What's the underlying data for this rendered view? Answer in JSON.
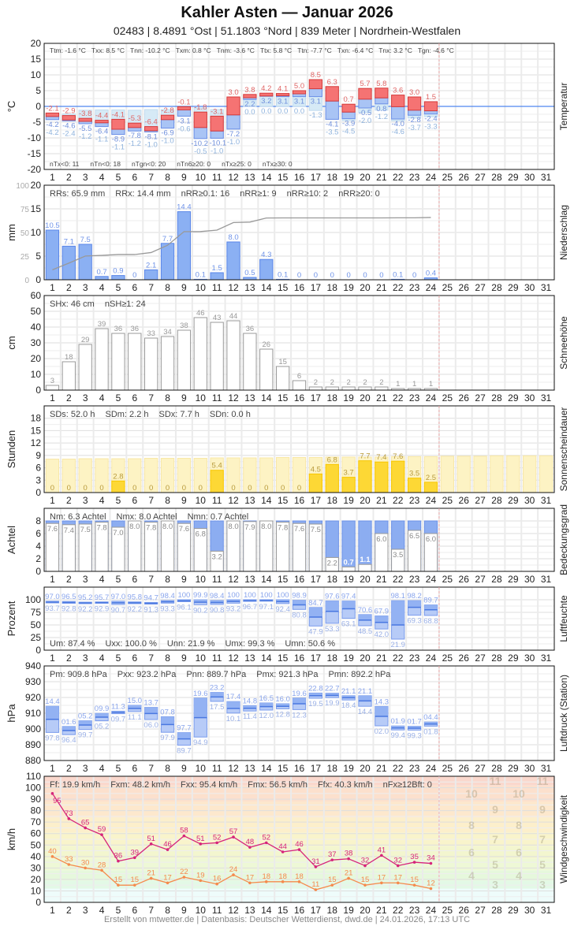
{
  "header": {
    "title": "Kahler Asten  —  Januar 2026",
    "subtitle": "02483  |  8.4891 °Ost  |  51.1803 °Nord  |  839 Meter  |  Nordrhein-Westfalen"
  },
  "footer": "Erstellt von mtwetter.de | Datenbasis: Deutscher Wetterdienst, dwd.de | 24.01.2026, 17:13 UTC",
  "days": [
    "1",
    "2",
    "3",
    "4",
    "5",
    "6",
    "7",
    "8",
    "9",
    "10",
    "11",
    "12",
    "13",
    "14",
    "15",
    "16",
    "17",
    "18",
    "19",
    "20",
    "21",
    "22",
    "23",
    "24",
    "25",
    "26",
    "27",
    "28",
    "29",
    "30",
    "31"
  ],
  "colors": {
    "temp_max": "#f57373",
    "temp_min": "#a9c4f5",
    "precip": "#8bb0f3",
    "snow": "#ffffff",
    "sun": "#fdd835",
    "cloud": "#8cadf1",
    "gust": "#d6247a",
    "wind": "#f58a4c",
    "today_line": "#f4b0b0"
  },
  "chart_data": [
    {
      "type": "bar",
      "ylabel": "°C",
      "side_label": "Temperatur",
      "ylim": [
        -20,
        20
      ],
      "yticks": [
        -20,
        -15,
        -10,
        -5,
        0,
        5,
        10,
        15,
        20
      ],
      "stats": [
        "Ttm: -1.6 °C",
        "Txx: 8.5 °C",
        "Tnn: -10.2 °C",
        "Txm: 0.8 °C",
        "Tnm: -3.6 °C",
        "Ttx: 5.8 °C",
        "Ttn: -7.7 °C",
        "Txn: -6.4 °C",
        "Tnx: 3.2 °C",
        "Tgn: -4.6 °C"
      ],
      "bottom_stats": [
        "nTx<0: 11",
        "nTn<0: 18",
        "nTgn<0: 20",
        "nTn6≥20: 0",
        "nTx≥25: 0",
        "nTx≥30: 0"
      ],
      "tx": [
        -2.1,
        -2.9,
        -3.8,
        -4.4,
        -4.1,
        -5.3,
        -6.4,
        -2.8,
        -0.1,
        -1.8,
        -3.1,
        3.0,
        3.8,
        4.2,
        4.1,
        5.0,
        8.5,
        6.3,
        0.7,
        5.7,
        5.8,
        3.6,
        3.0,
        1.5
      ],
      "tm": [
        -3.2,
        -4.3,
        -4.75,
        -5.2,
        -7.25,
        -6.7,
        -7.7,
        -4.2,
        -1.1,
        -6.7,
        -7.8,
        -2.7,
        2.75,
        3.3,
        3.4,
        4.0,
        5.6,
        1.7,
        -1.8,
        2.3,
        2.7,
        -0.1,
        -1.2,
        -1.4
      ],
      "tn": [
        -4.2,
        -4.6,
        -5.5,
        -6.4,
        -8.9,
        -7.8,
        -8.1,
        -6.9,
        -3.1,
        -10.2,
        -10.1,
        -7.2,
        2.2,
        3.2,
        3.1,
        3.1,
        3.1,
        -4.1,
        -3.9,
        -0.5,
        0.8,
        -4.0,
        -2.8,
        -2.4
      ],
      "tg": [
        -4.2,
        -2.4,
        -1.2,
        -1.1,
        -1.1,
        -1.2,
        -1.0,
        -1.0,
        -0.6,
        -0.5,
        -1.0,
        -1.0,
        0.0,
        0.0,
        0.0,
        0.0,
        -1.3,
        -3.5,
        -4.5,
        -2.0,
        -1.2,
        -4.6,
        -3.7,
        -3.3
      ]
    },
    {
      "type": "bar",
      "ylabel": "mm",
      "side_label": "Niederschlag",
      "ylim": [
        0,
        20
      ],
      "yticks": [
        0,
        5,
        10,
        15,
        20
      ],
      "y2lim": [
        0,
        100
      ],
      "y2ticks": [
        0,
        25,
        50,
        75,
        100
      ],
      "stats": [
        "RRs: 65.9 mm",
        "RRx: 14.4 mm",
        "nRR≥0.1: 16",
        "nRR≥1: 9",
        "nRR≥10: 2",
        "nRR≥20: 0"
      ],
      "values": [
        10.5,
        7.1,
        7.5,
        0.7,
        0.9,
        0,
        2.1,
        7.7,
        14.4,
        0.1,
        1.5,
        8.0,
        0.5,
        4.3,
        0.1,
        0,
        0,
        0,
        0,
        0,
        0,
        0.1,
        0,
        0.4
      ]
    },
    {
      "type": "bar",
      "ylabel": "cm",
      "side_label": "Schneehöhe",
      "ylim": [
        0,
        60
      ],
      "yticks": [
        0,
        10,
        20,
        30,
        40,
        50,
        60
      ],
      "stats": [
        "SHx: 46 cm",
        "nSH≥1: 24"
      ],
      "values": [
        3,
        18,
        29,
        39,
        36,
        36,
        33,
        34,
        38,
        46,
        43,
        44,
        36,
        26,
        15,
        6,
        2,
        2,
        2,
        2,
        2,
        1,
        1,
        1
      ]
    },
    {
      "type": "bar",
      "ylabel": "Stunden",
      "side_label": "Sonnenscheindauer",
      "ylim": [
        0,
        21
      ],
      "yticks": [
        0,
        3,
        6,
        9,
        12,
        15,
        18
      ],
      "stats": [
        "SDs: 52.0 h",
        "SDm: 2.2 h",
        "SDx: 7.7 h",
        "SDn: 0.0 h"
      ],
      "values": [
        0,
        0,
        0,
        0,
        2.8,
        0,
        0,
        0,
        0,
        0,
        5.4,
        0,
        0,
        0,
        0,
        0,
        4.5,
        6.8,
        3.7,
        7.7,
        7.4,
        7.6,
        3.5,
        2.5
      ],
      "possible": [
        8.1,
        8.1,
        8.2,
        8.2,
        8.2,
        8.2,
        8.3,
        8.3,
        8.3,
        8.3,
        8.4,
        8.4,
        8.4,
        8.4,
        8.5,
        8.5,
        8.5,
        8.6,
        8.6,
        8.6,
        8.6,
        8.7,
        8.7,
        8.7,
        8.8,
        8.8,
        8.8,
        8.9,
        8.9,
        8.9,
        8.9
      ]
    },
    {
      "type": "bar",
      "ylabel": "Achtel",
      "side_label": "Bedeckungsgrad",
      "ylim": [
        0,
        10
      ],
      "yticks": [
        0,
        2,
        4,
        6,
        8
      ],
      "stats": [
        "Nm: 6.3 Achtel",
        "Nmx: 8.0 Achtel",
        "Nmn: 0.7 Achtel"
      ],
      "values": [
        7.6,
        7.4,
        7.5,
        7.8,
        7.0,
        8.0,
        7.8,
        8.0,
        7.6,
        6.8,
        3.2,
        8.0,
        7.9,
        8.0,
        7.8,
        7.6,
        7.5,
        2.2,
        0.7,
        1.1,
        6.0,
        3.5,
        6.5,
        6.0
      ]
    },
    {
      "type": "bar",
      "ylabel": "Prozent",
      "side_label": "Luftfeuchte",
      "ylim": [
        0,
        125
      ],
      "yticks": [
        0,
        25,
        50,
        75,
        100
      ],
      "stats": [
        "Um: 87.4 %",
        "Uxx: 100.0 %",
        "Unn: 21.9 %",
        "Umx: 99.3 %",
        "Umn: 50.6 %"
      ],
      "max": [
        97.0,
        96.5,
        95.2,
        95.7,
        97.0,
        95.8,
        94.7,
        98.4,
        100,
        99.9,
        98.4,
        100,
        100,
        100,
        100,
        98.9,
        84.7,
        97.6,
        97.4,
        70.6,
        67.9,
        98.1,
        98.2,
        89.7
      ],
      "mean": [
        95.4,
        94.7,
        93.7,
        94.3,
        93.9,
        94.0,
        93.0,
        95.9,
        98.1,
        95.1,
        94.6,
        96.6,
        98.4,
        98.6,
        96.2,
        89.9,
        65.6,
        77.0,
        82.0,
        59.5,
        55.0,
        50.0,
        85.0,
        80.0
      ],
      "min": [
        93.7,
        92.8,
        92.2,
        92.9,
        90.7,
        92.2,
        91.3,
        93.3,
        96.1,
        90.2,
        90.8,
        93.2,
        96.7,
        97.1,
        92.4,
        80.8,
        47.9,
        53.3,
        63.1,
        48.5,
        42.0,
        21.9,
        69.3,
        68.8
      ]
    },
    {
      "type": "bar",
      "ylabel": "hPa",
      "side_label": "Luftdruck (Station)",
      "ylim": [
        880,
        940
      ],
      "yticks": [
        880,
        890,
        900,
        910,
        920,
        930,
        940
      ],
      "stats": [
        "Pm: 909.8 hPa",
        "Pxx: 923.2 hPa",
        "Pnn: 889.7 hPa",
        "Pmx: 921.3 hPa",
        "Pmn: 892.2 hPa"
      ],
      "max": [
        914.4,
        901.6,
        905.2,
        909.9,
        911.3,
        915.0,
        913.7,
        907.8,
        897.7,
        919.6,
        923.2,
        917.4,
        914.8,
        916.5,
        916.0,
        919.6,
        922.8,
        922.7,
        921.1,
        921.1,
        914.3,
        901.9,
        901.7,
        904.4
      ],
      "mean": [
        906.1,
        899.0,
        902.5,
        907.5,
        910.5,
        913.0,
        909.8,
        902.8,
        893.7,
        907.2,
        920.3,
        913.0,
        913.1,
        914.2,
        914.4,
        916.0,
        921.1,
        921.3,
        919.8,
        917.8,
        908.0,
        900.6,
        900.5,
        903.1
      ],
      "min": [
        897.8,
        896.4,
        899.7,
        905.2,
        909.7,
        911.1,
        906.0,
        897.9,
        889.7,
        894.9,
        917.5,
        910.1,
        911.4,
        912.0,
        912.8,
        912.3,
        919.5,
        919.9,
        918.4,
        914.4,
        902.0,
        899.4,
        899.3,
        901.8
      ]
    },
    {
      "type": "line",
      "ylabel": "km/h",
      "side_label": "Windgeschwindigkeit",
      "ylim": [
        0,
        110
      ],
      "yticks": [
        0,
        10,
        20,
        30,
        40,
        50,
        60,
        70,
        80,
        90,
        100,
        110
      ],
      "stats": [
        "Ff: 19.9 km/h",
        "Fxm: 48.2 km/h",
        "Fxx: 95.4 km/h",
        "Fmx: 56.5 km/h",
        "Ffx: 40.3 km/h",
        "nFx≥12Bft: 0"
      ],
      "gust": [
        95,
        73,
        65,
        59,
        36,
        39,
        51,
        46,
        58,
        51,
        52,
        57,
        48,
        52,
        44,
        46,
        31,
        37,
        38,
        32,
        41,
        32,
        35,
        34
      ],
      "mean": [
        40,
        33,
        30,
        28,
        15,
        15,
        21,
        17,
        22,
        19,
        16,
        24,
        17,
        18,
        18,
        18,
        11,
        15,
        21,
        15,
        17,
        17,
        15,
        12
      ],
      "beaufort_bands": [
        {
          "bft": "3",
          "from": 12,
          "to": 19,
          "color": "#e3f9e6"
        },
        {
          "bft": "4",
          "from": 19,
          "to": 28,
          "color": "#e6f8dc"
        },
        {
          "bft": "5",
          "from": 28,
          "to": 38,
          "color": "#eef8d6"
        },
        {
          "bft": "6",
          "from": 38,
          "to": 49,
          "color": "#f3f6cf"
        },
        {
          "bft": "7",
          "from": 49,
          "to": 61,
          "color": "#f9f4cb"
        },
        {
          "bft": "8",
          "from": 61,
          "to": 74,
          "color": "#fcefcb"
        },
        {
          "bft": "9",
          "from": 74,
          "to": 88,
          "color": "#fde8cd"
        },
        {
          "bft": "10",
          "from": 88,
          "to": 102,
          "color": "#fce0cd"
        },
        {
          "bft": "11",
          "from": 102,
          "to": 117,
          "color": "#fad8cd"
        }
      ]
    }
  ]
}
